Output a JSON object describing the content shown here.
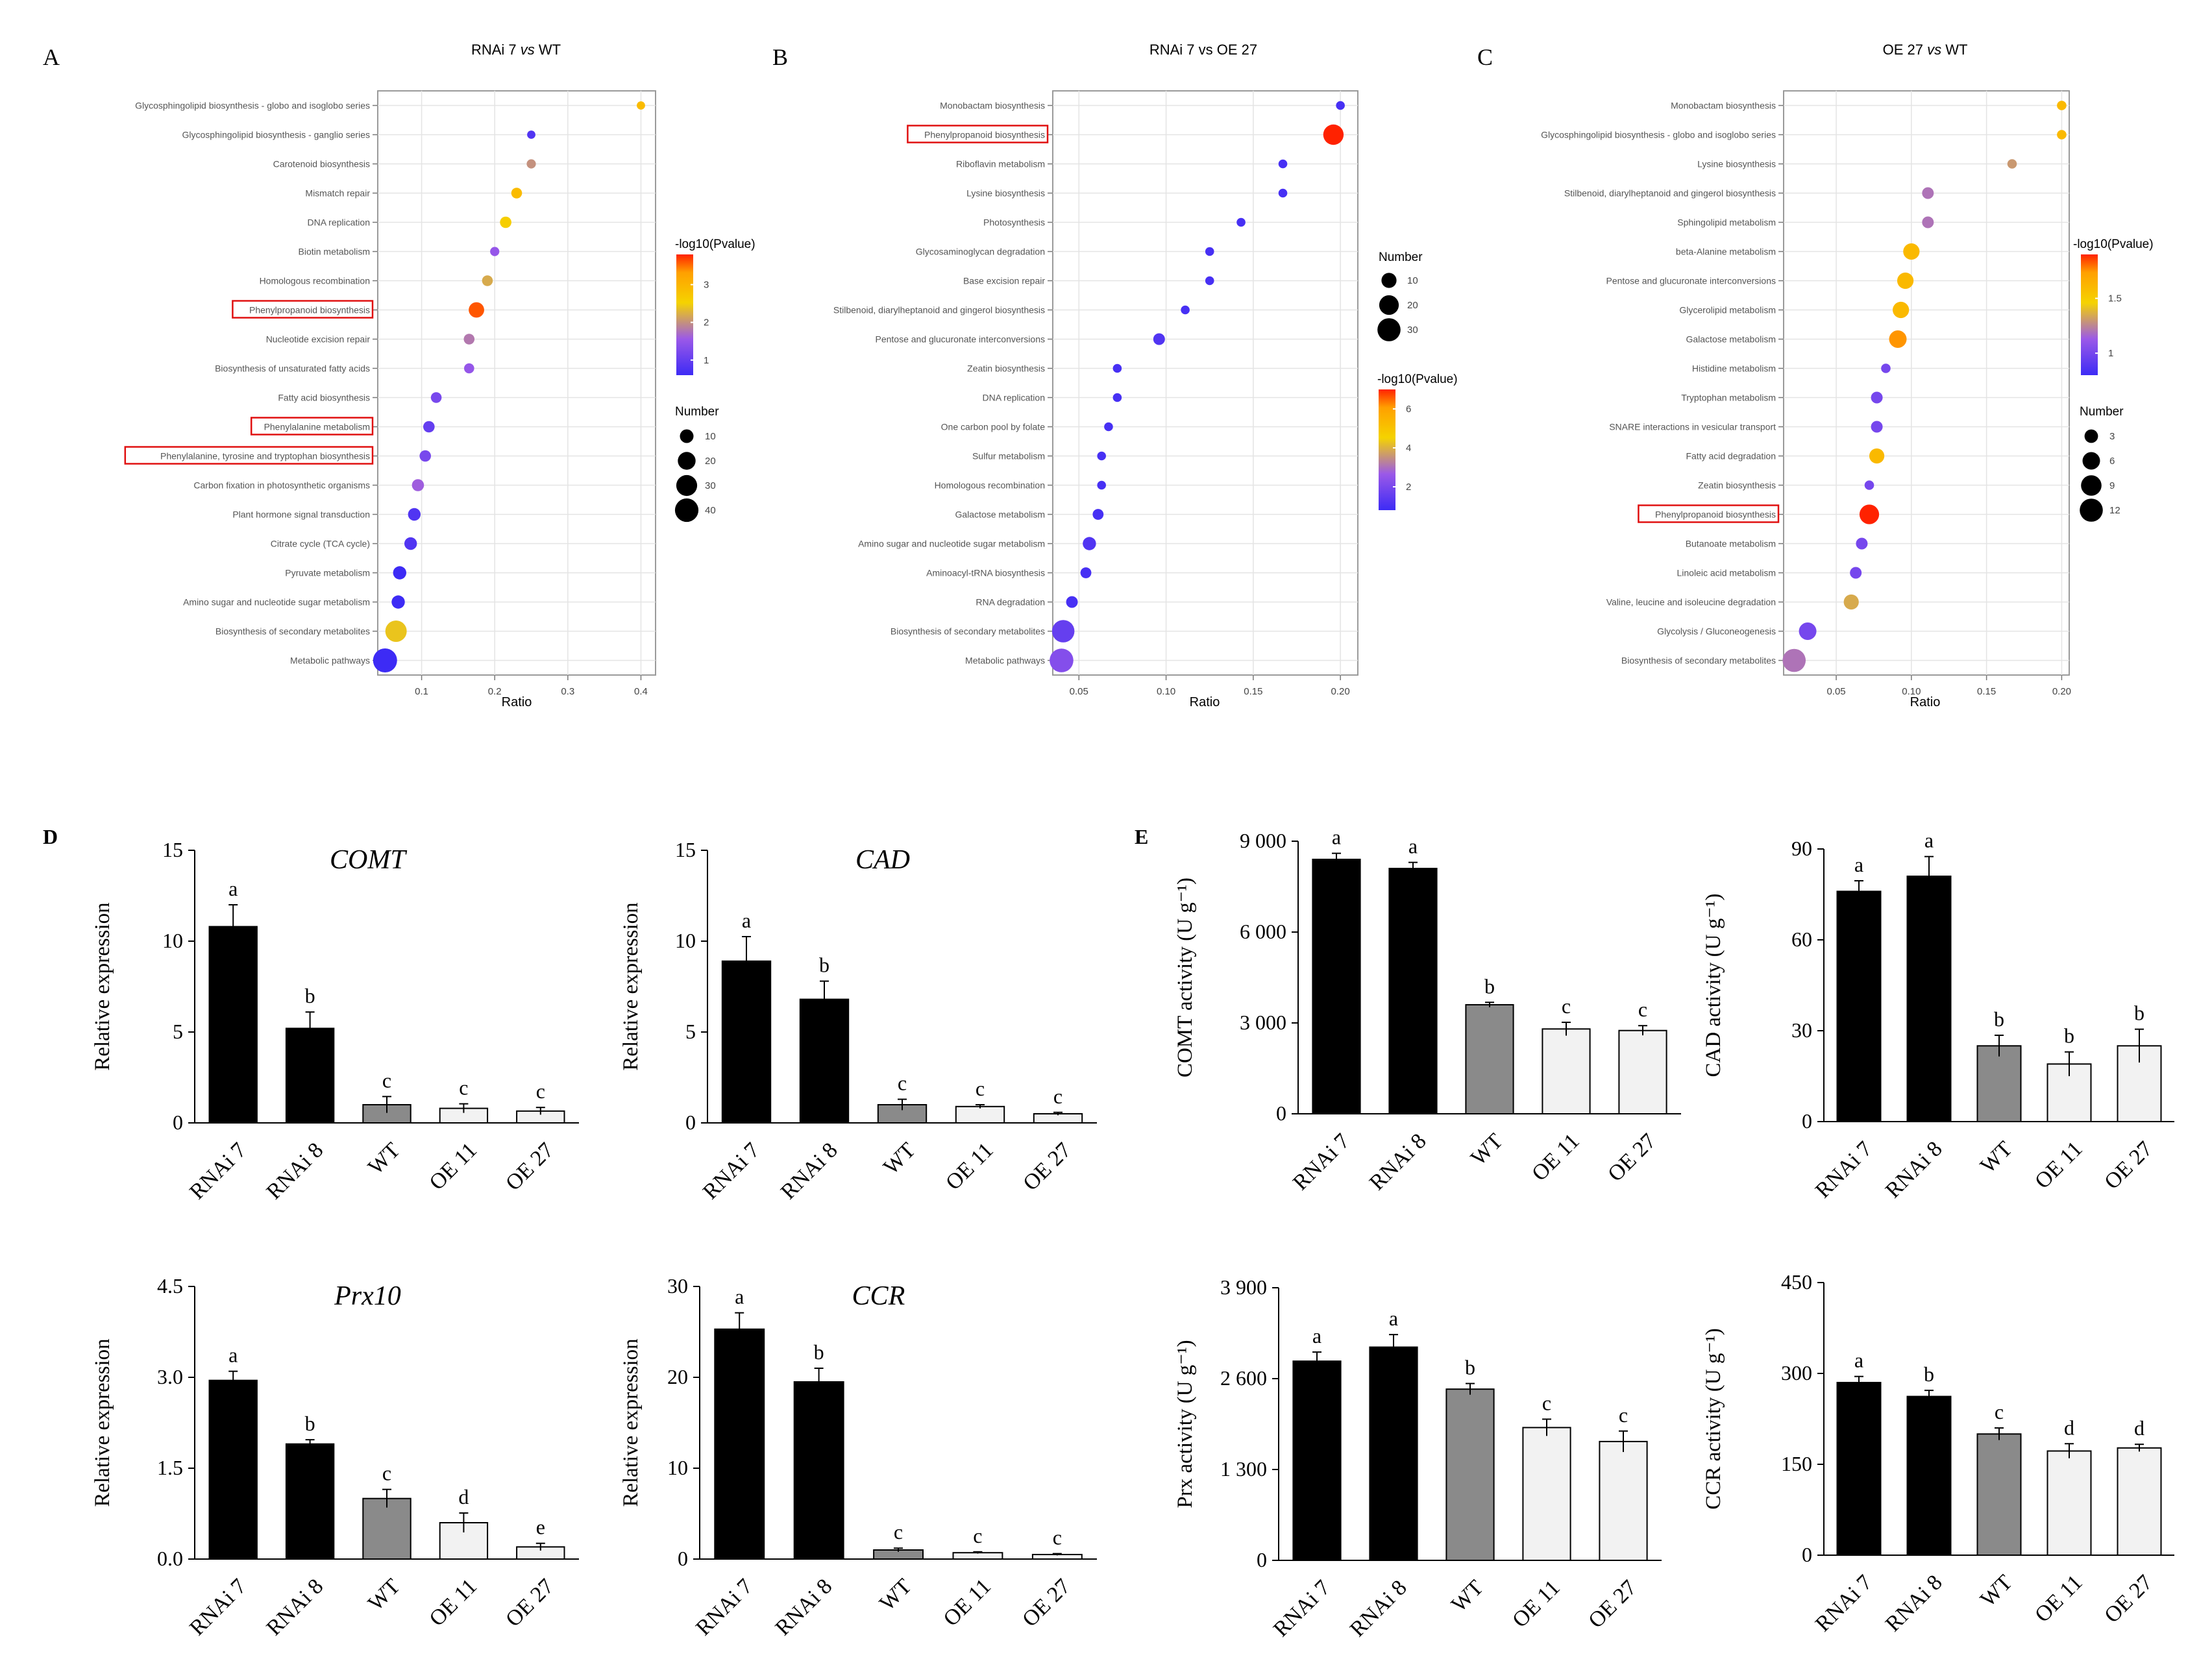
{
  "panel_letters": [
    "A",
    "B",
    "C",
    "D",
    "E"
  ],
  "chart_data": [
    {
      "id": "A",
      "type": "scatter",
      "title": "RNAi 7 vs WT",
      "title_parts": [
        "RNAi 7 ",
        "vs",
        " WT"
      ],
      "xlabel": "Ratio",
      "xlim": [
        0.04,
        0.42
      ],
      "xticks": [
        0.1,
        0.2,
        0.3,
        0.4
      ],
      "xtick_labels": [
        "0.1",
        "0.2",
        "0.3",
        "0.4"
      ],
      "legend_color_title": "-log10(Pvalue)",
      "color_ticks": [
        1,
        2,
        3
      ],
      "color_range": [
        0.6,
        3.8
      ],
      "legend_size_title": "Number",
      "size_ticks": [
        10,
        20,
        30,
        40
      ],
      "size_max": 45,
      "terms": [
        {
          "label": "Glycosphingolipid biosynthesis - globo and isoglobo series",
          "ratio": 0.4,
          "p": 2.9,
          "n": 2
        },
        {
          "label": "Glycosphingolipid biosynthesis - ganglio series",
          "ratio": 0.25,
          "p": 0.8,
          "n": 2
        },
        {
          "label": "Carotenoid biosynthesis",
          "ratio": 0.25,
          "p": 2.0,
          "n": 3
        },
        {
          "label": "Mismatch repair",
          "ratio": 0.23,
          "p": 2.9,
          "n": 5
        },
        {
          "label": "DNA replication",
          "ratio": 0.215,
          "p": 2.6,
          "n": 6
        },
        {
          "label": "Biotin metabolism",
          "ratio": 0.2,
          "p": 1.5,
          "n": 3
        },
        {
          "label": "Homologous recombination",
          "ratio": 0.19,
          "p": 2.2,
          "n": 5
        },
        {
          "label": "Phenylpropanoid biosynthesis",
          "ratio": 0.175,
          "p": 3.6,
          "n": 14,
          "highlight": true
        },
        {
          "label": "Nucleotide excision repair",
          "ratio": 0.165,
          "p": 1.8,
          "n": 5
        },
        {
          "label": "Biosynthesis of unsaturated fatty acids",
          "ratio": 0.165,
          "p": 1.5,
          "n": 4
        },
        {
          "label": "Fatty acid biosynthesis",
          "ratio": 0.12,
          "p": 1.2,
          "n": 5
        },
        {
          "label": "Phenylalanine metabolism",
          "ratio": 0.11,
          "p": 1.0,
          "n": 6,
          "highlight": true
        },
        {
          "label": "Phenylalanine, tyrosine and tryptophan biosynthesis",
          "ratio": 0.105,
          "p": 1.2,
          "n": 6,
          "highlight": true
        },
        {
          "label": "Carbon fixation in photosynthetic organisms",
          "ratio": 0.095,
          "p": 1.6,
          "n": 7
        },
        {
          "label": "Plant hormone signal transduction",
          "ratio": 0.09,
          "p": 0.8,
          "n": 8
        },
        {
          "label": "Citrate cycle (TCA cycle)",
          "ratio": 0.085,
          "p": 0.8,
          "n": 8
        },
        {
          "label": "Pyruvate metabolism",
          "ratio": 0.07,
          "p": 0.6,
          "n": 9
        },
        {
          "label": "Amino sugar and nucleotide sugar metabolism",
          "ratio": 0.068,
          "p": 0.6,
          "n": 9
        },
        {
          "label": "Biosynthesis of secondary metabolites",
          "ratio": 0.065,
          "p": 2.4,
          "n": 32
        },
        {
          "label": "Metabolic pathways",
          "ratio": 0.05,
          "p": 0.6,
          "n": 42
        }
      ]
    },
    {
      "id": "B",
      "type": "scatter",
      "title": "RNAi 7 vs OE 27",
      "title_parts": [
        "RNAi 7 vs OE 27"
      ],
      "xlabel": "Ratio",
      "xlim": [
        0.035,
        0.21
      ],
      "xticks": [
        0.05,
        0.1,
        0.15,
        0.2
      ],
      "xtick_labels": [
        "0.05",
        "0.10",
        "0.15",
        "0.20"
      ],
      "legend_color_title": "-log10(Pvalue)",
      "color_ticks": [
        2,
        4,
        6
      ],
      "color_range": [
        0.8,
        7.0
      ],
      "legend_size_title": "Number",
      "size_ticks": [
        10,
        20,
        30
      ],
      "size_max": 35,
      "terms": [
        {
          "label": "Monobactam biosynthesis",
          "ratio": 0.2,
          "p": 1.0,
          "n": 2
        },
        {
          "label": "Phenylpropanoid biosynthesis",
          "ratio": 0.196,
          "p": 7.0,
          "n": 22,
          "highlight": true
        },
        {
          "label": "Riboflavin metabolism",
          "ratio": 0.167,
          "p": 1.0,
          "n": 2
        },
        {
          "label": "Lysine biosynthesis",
          "ratio": 0.167,
          "p": 1.0,
          "n": 2
        },
        {
          "label": "Photosynthesis",
          "ratio": 0.143,
          "p": 1.0,
          "n": 2
        },
        {
          "label": "Glycosaminoglycan degradation",
          "ratio": 0.125,
          "p": 1.0,
          "n": 2
        },
        {
          "label": "Base excision repair",
          "ratio": 0.125,
          "p": 1.0,
          "n": 2
        },
        {
          "label": "Stilbenoid, diarylheptanoid and gingerol biosynthesis",
          "ratio": 0.111,
          "p": 1.0,
          "n": 2
        },
        {
          "label": "Pentose and glucuronate interconversions",
          "ratio": 0.096,
          "p": 1.2,
          "n": 5
        },
        {
          "label": "Zeatin biosynthesis",
          "ratio": 0.072,
          "p": 1.0,
          "n": 2
        },
        {
          "label": "DNA replication",
          "ratio": 0.072,
          "p": 1.0,
          "n": 2
        },
        {
          "label": "One carbon pool by folate",
          "ratio": 0.067,
          "p": 1.0,
          "n": 2
        },
        {
          "label": "Sulfur metabolism",
          "ratio": 0.063,
          "p": 1.0,
          "n": 2
        },
        {
          "label": "Homologous recombination",
          "ratio": 0.063,
          "p": 1.0,
          "n": 2
        },
        {
          "label": "Galactose metabolism",
          "ratio": 0.061,
          "p": 1.0,
          "n": 4
        },
        {
          "label": "Amino sugar and nucleotide sugar metabolism",
          "ratio": 0.056,
          "p": 1.2,
          "n": 7
        },
        {
          "label": "Aminoacyl-tRNA biosynthesis",
          "ratio": 0.054,
          "p": 1.0,
          "n": 4
        },
        {
          "label": "RNA degradation",
          "ratio": 0.046,
          "p": 1.0,
          "n": 5
        },
        {
          "label": "Biosynthesis of secondary metabolites",
          "ratio": 0.041,
          "p": 1.6,
          "n": 28
        },
        {
          "label": "Metabolic pathways",
          "ratio": 0.04,
          "p": 2.2,
          "n": 32
        }
      ]
    },
    {
      "id": "C",
      "type": "scatter",
      "title": "OE 27 vs WT",
      "title_parts": [
        "OE 27 ",
        "vs",
        " WT"
      ],
      "xlabel": "Ratio",
      "xlim": [
        0.015,
        0.205
      ],
      "xticks": [
        0.05,
        0.1,
        0.15,
        0.2
      ],
      "xtick_labels": [
        "0.05",
        "0.10",
        "0.15",
        "0.20"
      ],
      "legend_color_title": "-log10(Pvalue)",
      "color_ticks": [
        1.0,
        1.5
      ],
      "color_range": [
        0.8,
        1.9
      ],
      "legend_size_title": "Number",
      "size_ticks": [
        3,
        6,
        9,
        12
      ],
      "size_max": 14,
      "terms": [
        {
          "label": "Monobactam biosynthesis",
          "ratio": 0.2,
          "p": 1.6,
          "n": 1
        },
        {
          "label": "Glycosphingolipid biosynthesis - globo and isoglobo series",
          "ratio": 0.2,
          "p": 1.6,
          "n": 1
        },
        {
          "label": "Lysine biosynthesis",
          "ratio": 0.167,
          "p": 1.3,
          "n": 1
        },
        {
          "label": "Stilbenoid, diarylheptanoid and gingerol biosynthesis",
          "ratio": 0.111,
          "p": 1.2,
          "n": 2
        },
        {
          "label": "Sphingolipid metabolism",
          "ratio": 0.111,
          "p": 1.2,
          "n": 2
        },
        {
          "label": "beta-Alanine metabolism",
          "ratio": 0.1,
          "p": 1.6,
          "n": 5
        },
        {
          "label": "Pentose and glucuronate interconversions",
          "ratio": 0.096,
          "p": 1.6,
          "n": 5
        },
        {
          "label": "Glycerolipid metabolism",
          "ratio": 0.093,
          "p": 1.6,
          "n": 5
        },
        {
          "label": "Galactose metabolism",
          "ratio": 0.091,
          "p": 1.75,
          "n": 6
        },
        {
          "label": "Histidine metabolism",
          "ratio": 0.083,
          "p": 1.0,
          "n": 1
        },
        {
          "label": "Tryptophan metabolism",
          "ratio": 0.077,
          "p": 1.0,
          "n": 2
        },
        {
          "label": "SNARE interactions in vesicular transport",
          "ratio": 0.077,
          "p": 1.0,
          "n": 2
        },
        {
          "label": "Fatty acid degradation",
          "ratio": 0.077,
          "p": 1.6,
          "n": 4
        },
        {
          "label": "Zeatin biosynthesis",
          "ratio": 0.072,
          "p": 1.0,
          "n": 1
        },
        {
          "label": "Phenylpropanoid biosynthesis",
          "ratio": 0.072,
          "p": 1.9,
          "n": 8,
          "highlight": true
        },
        {
          "label": "Butanoate metabolism",
          "ratio": 0.067,
          "p": 1.0,
          "n": 2
        },
        {
          "label": "Linoleic acid metabolism",
          "ratio": 0.063,
          "p": 1.0,
          "n": 2
        },
        {
          "label": "Valine, leucine and isoleucine degradation",
          "ratio": 0.06,
          "p": 1.35,
          "n": 4
        },
        {
          "label": "Glycolysis / Gluconeogenesis",
          "ratio": 0.031,
          "p": 1.0,
          "n": 6
        },
        {
          "label": "Biosynthesis of secondary metabolites",
          "ratio": 0.022,
          "p": 1.2,
          "n": 12
        }
      ]
    },
    {
      "id": "D-COMT",
      "type": "bar",
      "title": "COMT",
      "ylabel": "Relative expression",
      "ylim": [
        0,
        15
      ],
      "yticks": [
        "0",
        "5",
        "10",
        "15"
      ],
      "ytick_values": [
        0,
        5,
        10,
        15
      ],
      "categories": [
        "RNAi 7",
        "RNAi 8",
        "WT",
        "OE 11",
        "OE 27"
      ],
      "values": [
        10.8,
        5.2,
        1.0,
        0.8,
        0.65
      ],
      "errors": [
        1.2,
        0.9,
        0.45,
        0.25,
        0.2
      ],
      "letters": [
        "a",
        "b",
        "c",
        "c",
        "c"
      ]
    },
    {
      "id": "D-CAD",
      "type": "bar",
      "title": "CAD",
      "ylabel": "Relative  expression",
      "ylim": [
        0,
        15
      ],
      "yticks": [
        "0",
        "5",
        "10",
        "15"
      ],
      "ytick_values": [
        0,
        5,
        10,
        15
      ],
      "categories": [
        "RNAi 7",
        "RNAi 8",
        "WT",
        "OE 11",
        "OE 27"
      ],
      "values": [
        8.9,
        6.8,
        1.0,
        0.9,
        0.5
      ],
      "errors": [
        1.35,
        1.0,
        0.3,
        0.1,
        0.08
      ],
      "letters": [
        "a",
        "b",
        "c",
        "c",
        "c"
      ]
    },
    {
      "id": "D-Prx10",
      "type": "bar",
      "title": "Prx10",
      "ylabel": "Relative  expression",
      "ylim": [
        0,
        4.5
      ],
      "yticks": [
        "0.0",
        "1.5",
        "3.0",
        "4.5"
      ],
      "ytick_values": [
        0,
        1.5,
        3,
        4.5
      ],
      "categories": [
        "RNAi 7",
        "RNAi 8",
        "WT",
        "OE 11",
        "OE 27"
      ],
      "values": [
        2.95,
        1.9,
        1.0,
        0.6,
        0.2
      ],
      "errors": [
        0.15,
        0.07,
        0.15,
        0.16,
        0.06
      ],
      "letters": [
        "a",
        "b",
        "c",
        "d",
        "e"
      ]
    },
    {
      "id": "D-CCR",
      "type": "bar",
      "title": "CCR",
      "ylabel": "Relative expression",
      "ylim": [
        0,
        30
      ],
      "yticks": [
        "0",
        "10",
        "20",
        "30"
      ],
      "ytick_values": [
        0,
        10,
        20,
        30
      ],
      "categories": [
        "RNAi 7",
        "RNAi 8",
        "WT",
        "OE 11",
        "OE 27"
      ],
      "values": [
        25.3,
        19.5,
        1.0,
        0.7,
        0.5
      ],
      "errors": [
        1.8,
        1.5,
        0.2,
        0.1,
        0.1
      ],
      "letters": [
        "a",
        "b",
        "c",
        "c",
        "c"
      ]
    },
    {
      "id": "E-COMT",
      "type": "bar",
      "title": "",
      "ylabel": "COMT activity (U g⁻¹)",
      "ylim": [
        0,
        9000
      ],
      "yticks": [
        "0",
        "3 000",
        "6 000",
        "9 000"
      ],
      "ytick_values": [
        0,
        3000,
        6000,
        9000
      ],
      "categories": [
        "RNAi 7",
        "RNAi 8",
        "WT",
        "OE 11",
        "OE 27"
      ],
      "values": [
        8400,
        8100,
        3600,
        2800,
        2750
      ],
      "errors": [
        200,
        200,
        80,
        220,
        160
      ],
      "letters": [
        "a",
        "a",
        "b",
        "c",
        "c"
      ]
    },
    {
      "id": "E-CAD",
      "type": "bar",
      "title": "",
      "ylabel": "CAD activity (U g⁻¹)",
      "ylim": [
        0,
        90
      ],
      "yticks": [
        "0",
        "30",
        "60",
        "90"
      ],
      "ytick_values": [
        0,
        30,
        60,
        90
      ],
      "categories": [
        "RNAi 7",
        "RNAi 8",
        "WT",
        "OE 11",
        "OE 27"
      ],
      "values": [
        76,
        81,
        25,
        19,
        25
      ],
      "errors": [
        3.5,
        6.5,
        3.5,
        4.0,
        5.5
      ],
      "letters": [
        "a",
        "a",
        "b",
        "b",
        "b"
      ]
    },
    {
      "id": "E-Prx",
      "type": "bar",
      "title": "",
      "ylabel": "Prx activity (U g⁻¹)",
      "ylim": [
        0,
        3900
      ],
      "yticks": [
        "0",
        "1 300",
        "2 600",
        "3 900"
      ],
      "ytick_values": [
        0,
        1300,
        2600,
        3900
      ],
      "categories": [
        "RNAi 7",
        "RNAi 8",
        "WT",
        "OE 11",
        "OE 27"
      ],
      "values": [
        2850,
        3050,
        2450,
        1900,
        1700
      ],
      "errors": [
        130,
        180,
        80,
        120,
        150
      ],
      "letters": [
        "a",
        "a",
        "b",
        "c",
        "c"
      ]
    },
    {
      "id": "E-CCR",
      "type": "bar",
      "title": "",
      "ylabel": "CCR activity (U g⁻¹)",
      "ylim": [
        0,
        450
      ],
      "yticks": [
        "0",
        "150",
        "300",
        "450"
      ],
      "ytick_values": [
        0,
        150,
        300,
        450
      ],
      "categories": [
        "RNAi 7",
        "RNAi 8",
        "WT",
        "OE 11",
        "OE 27"
      ],
      "values": [
        285,
        262,
        200,
        172,
        177
      ],
      "errors": [
        10,
        10,
        10,
        12,
        6
      ],
      "letters": [
        "a",
        "b",
        "c",
        "d",
        "d"
      ]
    }
  ]
}
